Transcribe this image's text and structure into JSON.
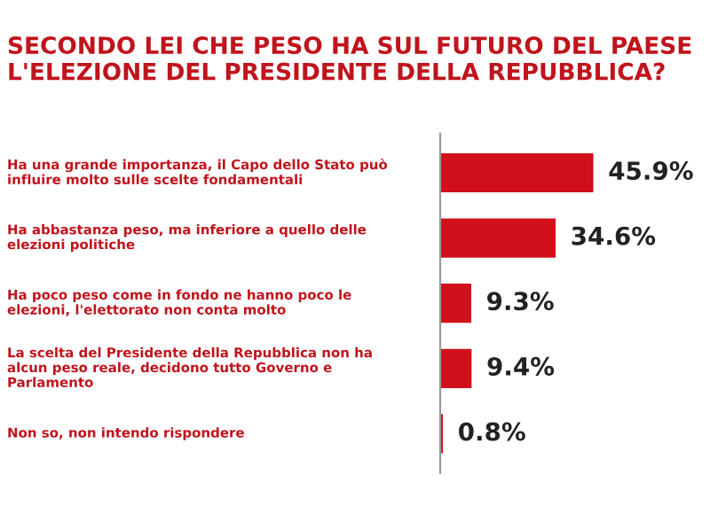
{
  "chart_data": {
    "type": "bar",
    "orientation": "horizontal",
    "title": "SECONDO LEI CHE PESO HA SUL FUTURO DEL PAESE L'ELEZIONE DEL PRESIDENTE DELLA REPUBBLICA?",
    "categories": [
      "Ha una grande importanza, il Capo dello Stato può\ninfluire molto sulle scelte fondamentali",
      "Ha abbastanza peso, ma inferiore a quello delle\nelezioni politiche",
      "Ha poco peso come in fondo ne hanno poco le\nelezioni, l'elettorato non conta molto",
      "La scelta del Presidente della Repubblica non ha\nalcun peso reale, decidono tutto Governo e\nParlamento",
      "Non so, non intendo rispondere"
    ],
    "values": [
      45.9,
      34.6,
      9.3,
      9.4,
      0.8
    ],
    "value_labels": [
      "45.9%",
      "34.6%",
      "9.3%",
      "9.4%",
      "0.8%"
    ],
    "color": "#d0101a"
  }
}
